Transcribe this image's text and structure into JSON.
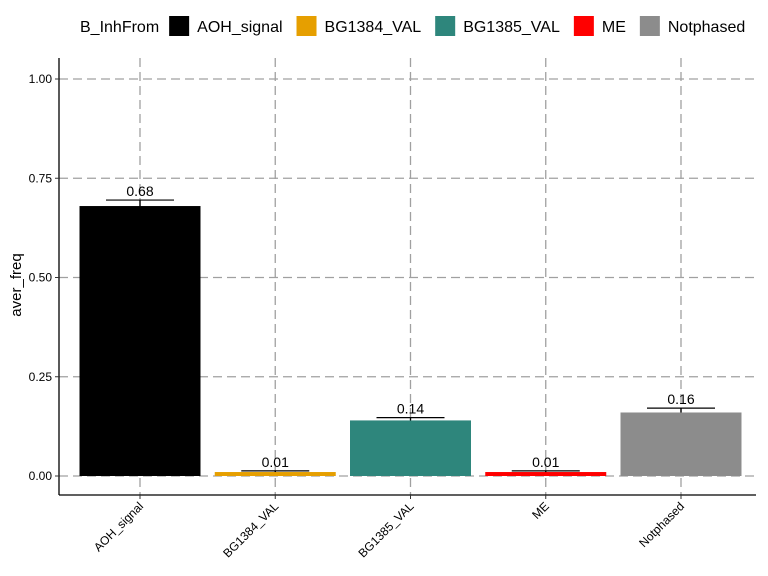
{
  "chart_data": {
    "type": "bar",
    "title": "",
    "xlabel": "",
    "ylabel": "aver_freq",
    "legend_title": "B_InhFrom",
    "legend_position": "top",
    "grid": true,
    "ylim": [
      0,
      1
    ],
    "yticks": [
      "0.00",
      "0.25",
      "0.50",
      "0.75",
      "1.00"
    ],
    "categories": [
      "AOH_signal",
      "BG1384_VAL",
      "BG1385_VAL",
      "ME",
      "Notphased"
    ],
    "values": [
      0.68,
      0.01,
      0.14,
      0.01,
      0.16
    ],
    "value_labels": [
      "0.68",
      "0.01",
      "0.14",
      "0.01",
      "0.16"
    ],
    "error_low": [
      0.67,
      0.005,
      0.135,
      0.005,
      0.15
    ],
    "error_high": [
      0.695,
      0.013,
      0.147,
      0.013,
      0.171
    ],
    "colors": [
      "#000000",
      "#E69F00",
      "#2E867C",
      "#FF0000",
      "#8C8C8C"
    ]
  }
}
